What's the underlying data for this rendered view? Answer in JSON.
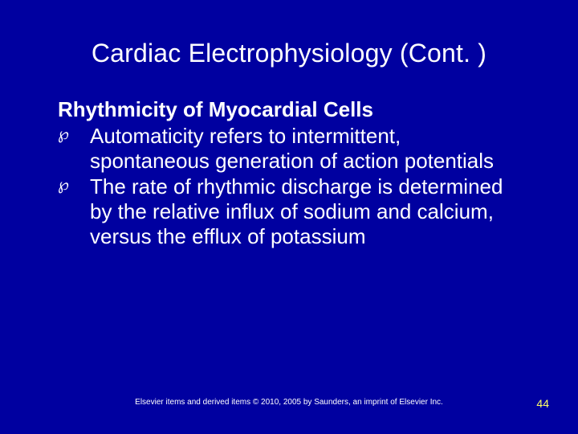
{
  "slide": {
    "background_color": "#0000a0",
    "text_color": "#ffffff",
    "title": "Cardiac Electrophysiology (Cont. )",
    "title_fontsize": 32,
    "subheading": "Rhythmicity of Myocardial Cells",
    "subheading_fontsize": 26,
    "subheading_fontweight": 700,
    "bullet_marker": "℘",
    "bullet_fontsize": 26,
    "bullets": [
      "Automaticity refers to intermittent, spontaneous generation of action potentials",
      "The rate of rhythmic discharge is determined by the relative influx of sodium and calcium, versus the efflux of potassium"
    ],
    "footer": "Elsevier items and derived items © 2010, 2005 by Saunders, an imprint of Elsevier Inc.",
    "footer_fontsize": 10,
    "page_number": "44",
    "page_number_color": "#ffff66",
    "page_number_fontsize": 14
  }
}
